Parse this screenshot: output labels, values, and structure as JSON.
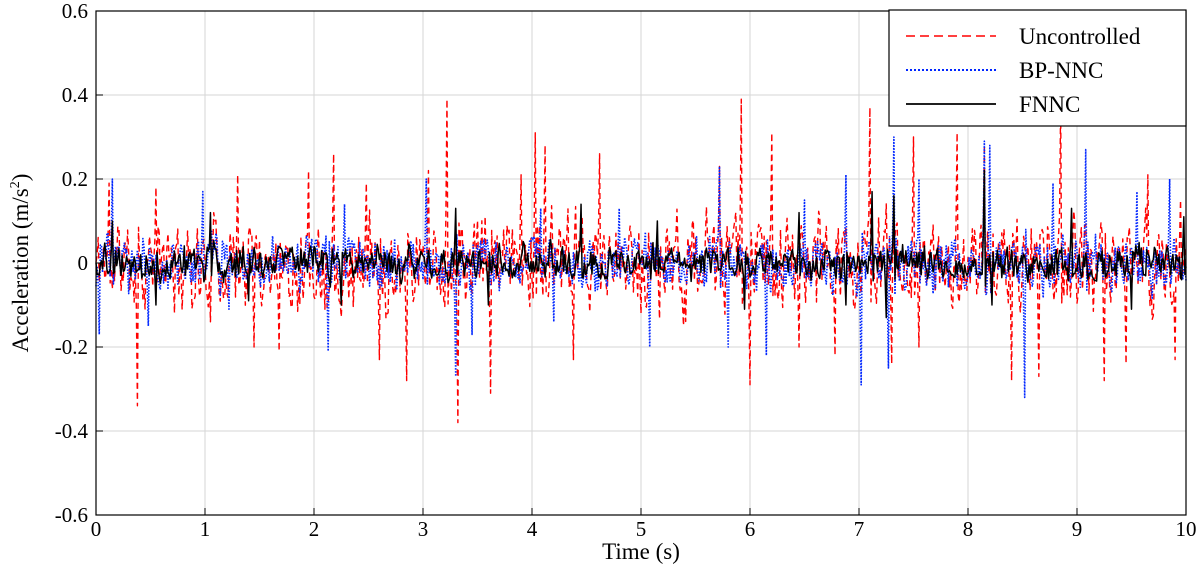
{
  "chart_data": {
    "type": "line",
    "title": "",
    "xlabel": "Time (s)",
    "ylabel_main": "Acceleration (m/s",
    "ylabel_sup": "2",
    "ylabel_close": ")",
    "xlim": [
      0,
      10
    ],
    "ylim": [
      -0.6,
      0.6
    ],
    "xticks": [
      0,
      1,
      2,
      3,
      4,
      5,
      6,
      7,
      8,
      9,
      10
    ],
    "xtick_labels": [
      "0",
      "1",
      "2",
      "3",
      "4",
      "5",
      "6",
      "7",
      "8",
      "9",
      "10"
    ],
    "yticks": [
      -0.6,
      -0.4,
      -0.2,
      0,
      0.2,
      0.4,
      0.6
    ],
    "ytick_labels": [
      "-0.6",
      "-0.4",
      "-0.2",
      "0",
      "0.2",
      "0.4",
      "0.6"
    ],
    "grid": true,
    "legend_position": "top-right",
    "sample_interval": 0.01,
    "series": [
      {
        "name": "Uncontrolled",
        "color": "#ff0000",
        "style": "dashed",
        "peaks": [
          [
            0.12,
            0.19
          ],
          [
            0.38,
            -0.34
          ],
          [
            0.55,
            0.18
          ],
          [
            1.05,
            -0.14
          ],
          [
            1.3,
            0.21
          ],
          [
            1.45,
            -0.2
          ],
          [
            1.68,
            -0.21
          ],
          [
            1.95,
            0.22
          ],
          [
            2.1,
            -0.11
          ],
          [
            2.18,
            0.26
          ],
          [
            2.48,
            0.19
          ],
          [
            2.6,
            -0.23
          ],
          [
            2.85,
            -0.28
          ],
          [
            3.05,
            0.22
          ],
          [
            3.22,
            0.39
          ],
          [
            3.32,
            -0.38
          ],
          [
            3.62,
            -0.31
          ],
          [
            3.9,
            0.21
          ],
          [
            4.03,
            0.31
          ],
          [
            4.12,
            0.28
          ],
          [
            4.38,
            -0.23
          ],
          [
            4.62,
            0.26
          ],
          [
            5.0,
            -0.12
          ],
          [
            5.72,
            0.23
          ],
          [
            5.92,
            0.39
          ],
          [
            6.0,
            -0.29
          ],
          [
            6.2,
            0.31
          ],
          [
            6.45,
            -0.2
          ],
          [
            6.78,
            -0.22
          ],
          [
            7.1,
            0.37
          ],
          [
            7.3,
            -0.24
          ],
          [
            7.5,
            0.3
          ],
          [
            7.55,
            -0.2
          ],
          [
            7.9,
            0.31
          ],
          [
            8.15,
            0.28
          ],
          [
            8.4,
            -0.28
          ],
          [
            8.65,
            -0.27
          ],
          [
            8.85,
            0.38
          ],
          [
            9.25,
            -0.28
          ],
          [
            9.45,
            -0.24
          ],
          [
            9.65,
            0.21
          ],
          [
            9.9,
            -0.23
          ],
          [
            9.95,
            0.15
          ]
        ],
        "amplitude": 0.12,
        "seed": 11
      },
      {
        "name": "BP-NNC",
        "color": "#0026ff",
        "style": "dotted",
        "peaks": [
          [
            0.03,
            -0.17
          ],
          [
            0.15,
            0.2
          ],
          [
            0.48,
            -0.15
          ],
          [
            0.98,
            0.17
          ],
          [
            1.22,
            -0.11
          ],
          [
            2.13,
            -0.21
          ],
          [
            2.28,
            0.14
          ],
          [
            3.03,
            0.2
          ],
          [
            3.3,
            -0.27
          ],
          [
            3.45,
            -0.17
          ],
          [
            4.08,
            0.13
          ],
          [
            4.2,
            -0.14
          ],
          [
            4.8,
            0.13
          ],
          [
            5.08,
            -0.2
          ],
          [
            5.72,
            0.23
          ],
          [
            5.8,
            -0.2
          ],
          [
            6.15,
            -0.22
          ],
          [
            6.5,
            0.15
          ],
          [
            6.88,
            0.21
          ],
          [
            7.02,
            -0.29
          ],
          [
            7.27,
            -0.25
          ],
          [
            7.32,
            0.3
          ],
          [
            7.55,
            0.2
          ],
          [
            8.15,
            0.29
          ],
          [
            8.2,
            0.28
          ],
          [
            8.52,
            -0.32
          ],
          [
            8.78,
            0.19
          ],
          [
            9.08,
            0.27
          ],
          [
            9.55,
            0.17
          ],
          [
            9.85,
            0.2
          ]
        ],
        "amplitude": 0.07,
        "seed": 23
      },
      {
        "name": "FNNC",
        "color": "#000000",
        "style": "solid",
        "peaks": [
          [
            0.15,
            0.1
          ],
          [
            0.55,
            -0.1
          ],
          [
            1.05,
            0.12
          ],
          [
            1.4,
            -0.09
          ],
          [
            2.25,
            -0.1
          ],
          [
            3.3,
            0.13
          ],
          [
            3.6,
            -0.1
          ],
          [
            4.45,
            0.14
          ],
          [
            5.15,
            0.1
          ],
          [
            5.95,
            -0.11
          ],
          [
            6.45,
            0.12
          ],
          [
            6.88,
            -0.1
          ],
          [
            7.12,
            0.17
          ],
          [
            7.25,
            -0.13
          ],
          [
            7.32,
            0.16
          ],
          [
            8.15,
            0.22
          ],
          [
            8.22,
            -0.1
          ],
          [
            8.95,
            0.13
          ],
          [
            9.5,
            -0.11
          ],
          [
            9.98,
            0.11
          ]
        ],
        "amplitude": 0.045,
        "seed": 37
      }
    ]
  }
}
